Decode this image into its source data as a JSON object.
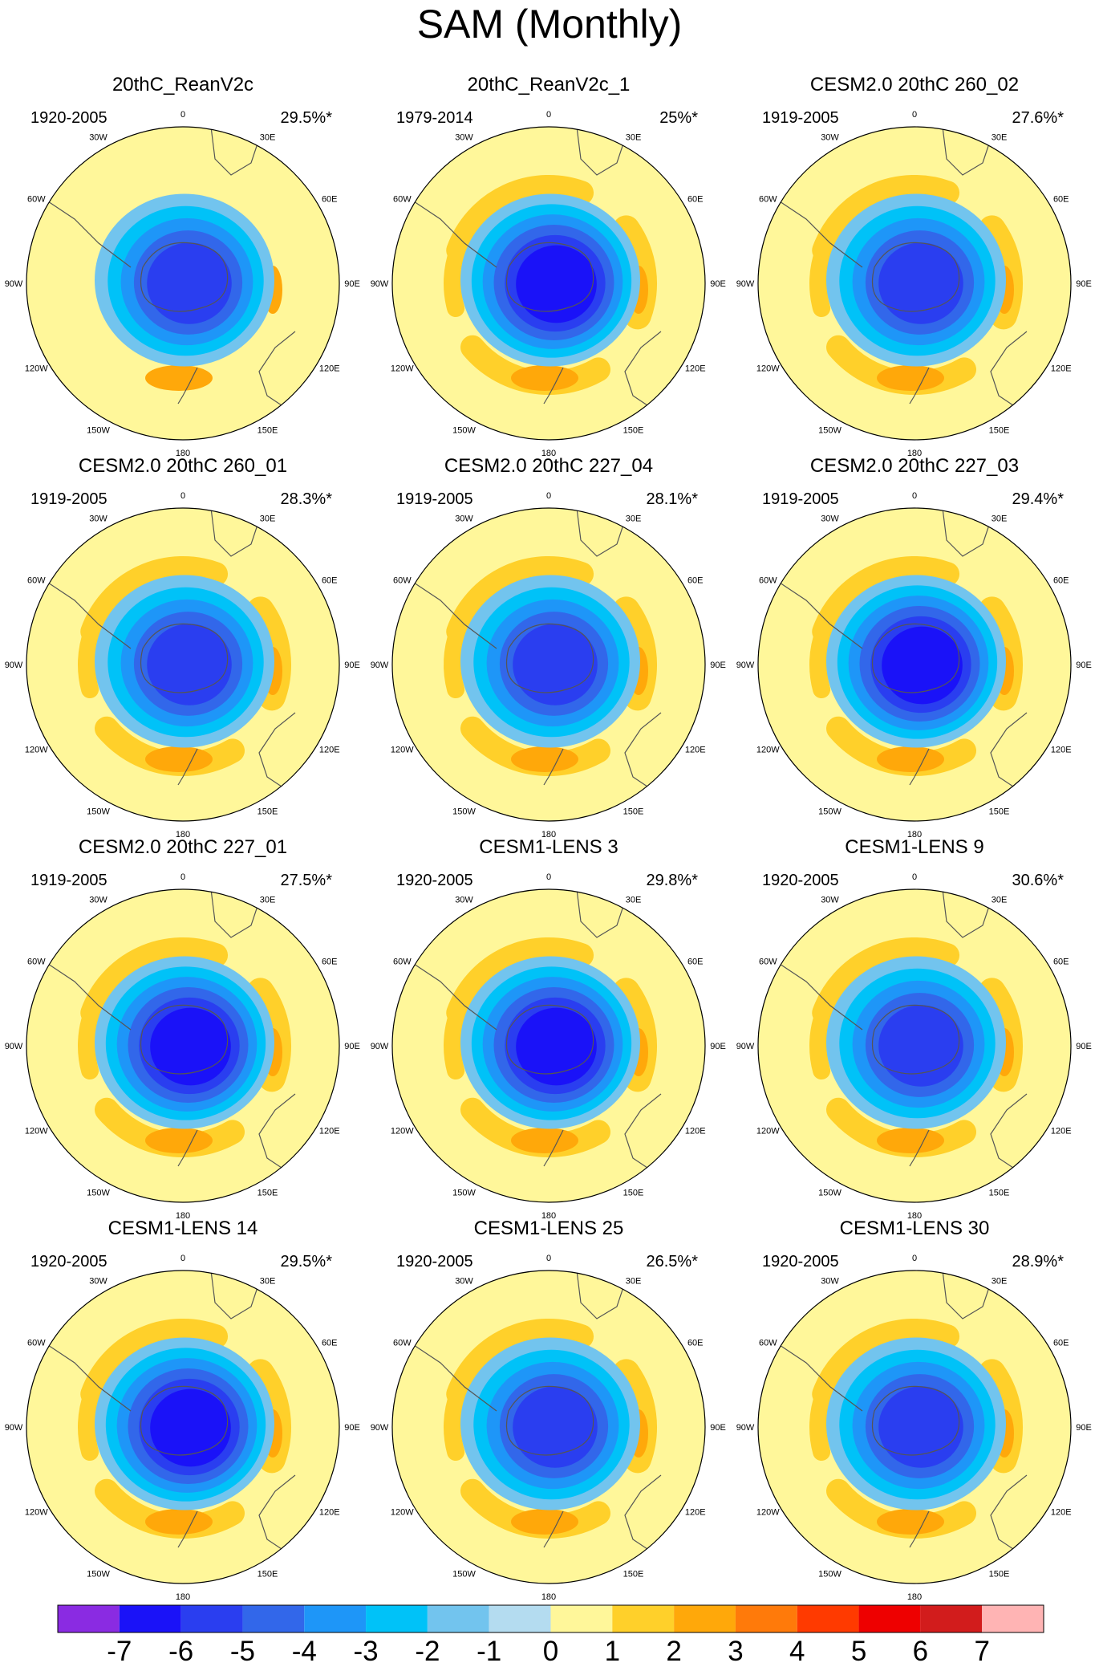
{
  "page": {
    "title": "SAM (Monthly)"
  },
  "chart_data": {
    "type": "polar-contour-map-grid",
    "title": "SAM (Monthly)",
    "projection": "south polar stereographic",
    "panels": [
      {
        "title": "20thC_ReanV2c",
        "period": "1920-2005",
        "pct": "29.5%*",
        "center_min": -5,
        "ring_max": 1,
        "pacific_max": 2
      },
      {
        "title": "20thC_ReanV2c_1",
        "period": "1979-2014",
        "pct": "25%*",
        "center_min": -6,
        "ring_max": 2,
        "pacific_max": 2
      },
      {
        "title": "CESM2.0 20thC 260_02",
        "period": "1919-2005",
        "pct": "27.6%*",
        "center_min": -5,
        "ring_max": 2,
        "pacific_max": 2
      },
      {
        "title": "CESM2.0 20thC 260_01",
        "period": "1919-2005",
        "pct": "28.3%*",
        "center_min": -5,
        "ring_max": 2,
        "pacific_max": 2
      },
      {
        "title": "CESM2.0 20thC 227_04",
        "period": "1919-2005",
        "pct": "28.1%*",
        "center_min": -5,
        "ring_max": 2,
        "pacific_max": 2
      },
      {
        "title": "CESM2.0 20thC 227_03",
        "period": "1919-2005",
        "pct": "29.4%*",
        "center_min": -6,
        "ring_max": 2,
        "pacific_max": 2
      },
      {
        "title": "CESM2.0 20thC 227_01",
        "period": "1919-2005",
        "pct": "27.5%*",
        "center_min": -6,
        "ring_max": 2,
        "pacific_max": 2
      },
      {
        "title": "CESM1-LENS 3",
        "period": "1920-2005",
        "pct": "29.8%*",
        "center_min": -6,
        "ring_max": 2,
        "pacific_max": 2
      },
      {
        "title": "CESM1-LENS 9",
        "period": "1920-2005",
        "pct": "30.6%*",
        "center_min": -5,
        "ring_max": 2,
        "pacific_max": 2
      },
      {
        "title": "CESM1-LENS 14",
        "period": "1920-2005",
        "pct": "29.5%*",
        "center_min": -6,
        "ring_max": 2,
        "pacific_max": 2
      },
      {
        "title": "CESM1-LENS 25",
        "period": "1920-2005",
        "pct": "26.5%*",
        "center_min": -5,
        "ring_max": 2,
        "pacific_max": 2
      },
      {
        "title": "CESM1-LENS 30",
        "period": "1920-2005",
        "pct": "28.9%*",
        "center_min": -5,
        "ring_max": 2,
        "pacific_max": 2
      }
    ],
    "longitude_labels": [
      "0",
      "30E",
      "60E",
      "90E",
      "120E",
      "150E",
      "180",
      "150W",
      "120W",
      "90W",
      "60W",
      "30W"
    ],
    "colorbar": {
      "levels": [
        -7,
        -6,
        -5,
        -4,
        -3,
        -2,
        -1,
        0,
        1,
        2,
        3,
        4,
        5,
        6,
        7
      ],
      "colors": [
        "#8a2be2",
        "#1a12f8",
        "#2a3ef0",
        "#3267ea",
        "#1e96f8",
        "#00c2f8",
        "#72c4ee",
        "#b4dcf0",
        "#fff79a",
        "#ffd02a",
        "#ffa80a",
        "#ff7a0a",
        "#ff3a00",
        "#ee0000",
        "#d21c1c",
        "#ffb4b4"
      ]
    }
  }
}
